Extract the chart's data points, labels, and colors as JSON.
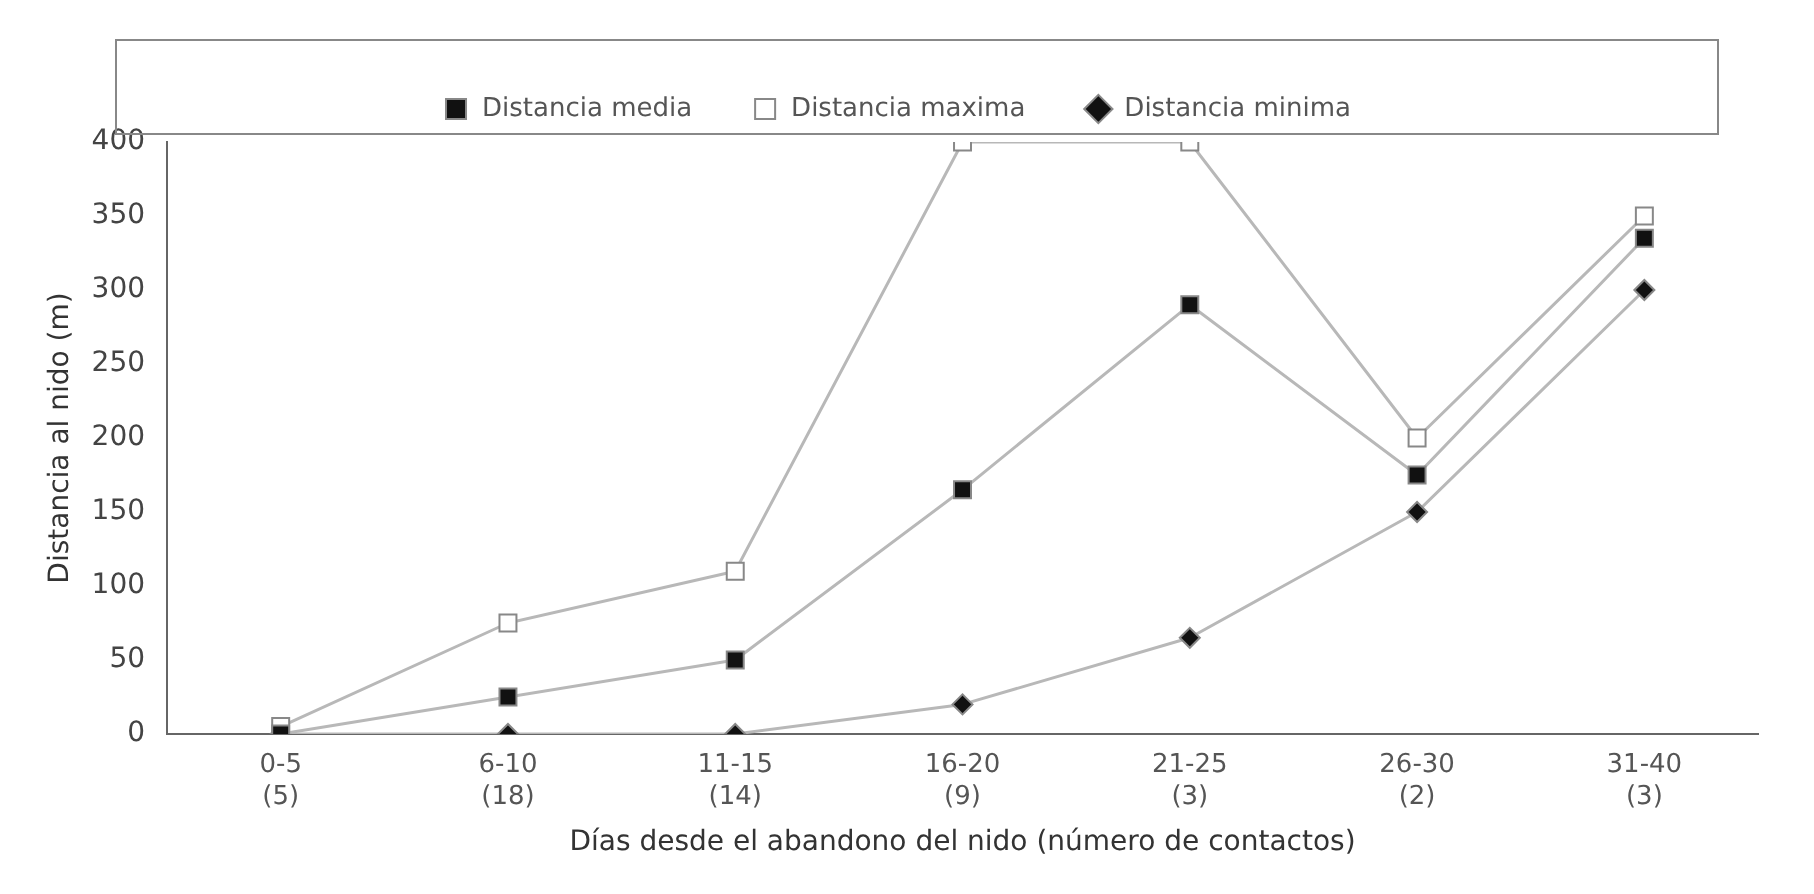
{
  "chart_data": {
    "type": "line",
    "xlabel": "Días desde el abandono del nido (número de contactos)",
    "ylabel": "Distancia al nido (m)",
    "categories": [
      "0-5\n(5)",
      "6-10\n(18)",
      "11-15\n(14)",
      "16-20\n(9)",
      "21-25\n(3)",
      "26-30\n(2)",
      "31-40\n(3)"
    ],
    "series": [
      {
        "name": "Distancia media",
        "color": "#111111",
        "marker": "square",
        "values": [
          0,
          25,
          50,
          165,
          290,
          175,
          335
        ]
      },
      {
        "name": "Distancia maxima",
        "color": "#ffffff",
        "marker": "square",
        "values": [
          5,
          75,
          110,
          400,
          400,
          200,
          350
        ]
      },
      {
        "name": "Distancia minima",
        "color": "#111111",
        "marker": "diamond",
        "values": [
          0,
          0,
          0,
          20,
          65,
          150,
          300
        ]
      }
    ],
    "ylim": [
      0,
      400
    ],
    "yticks": [
      0,
      50,
      100,
      150,
      200,
      250,
      300,
      350,
      400
    ],
    "grid": false,
    "legend": "top",
    "line_style": "solid"
  }
}
